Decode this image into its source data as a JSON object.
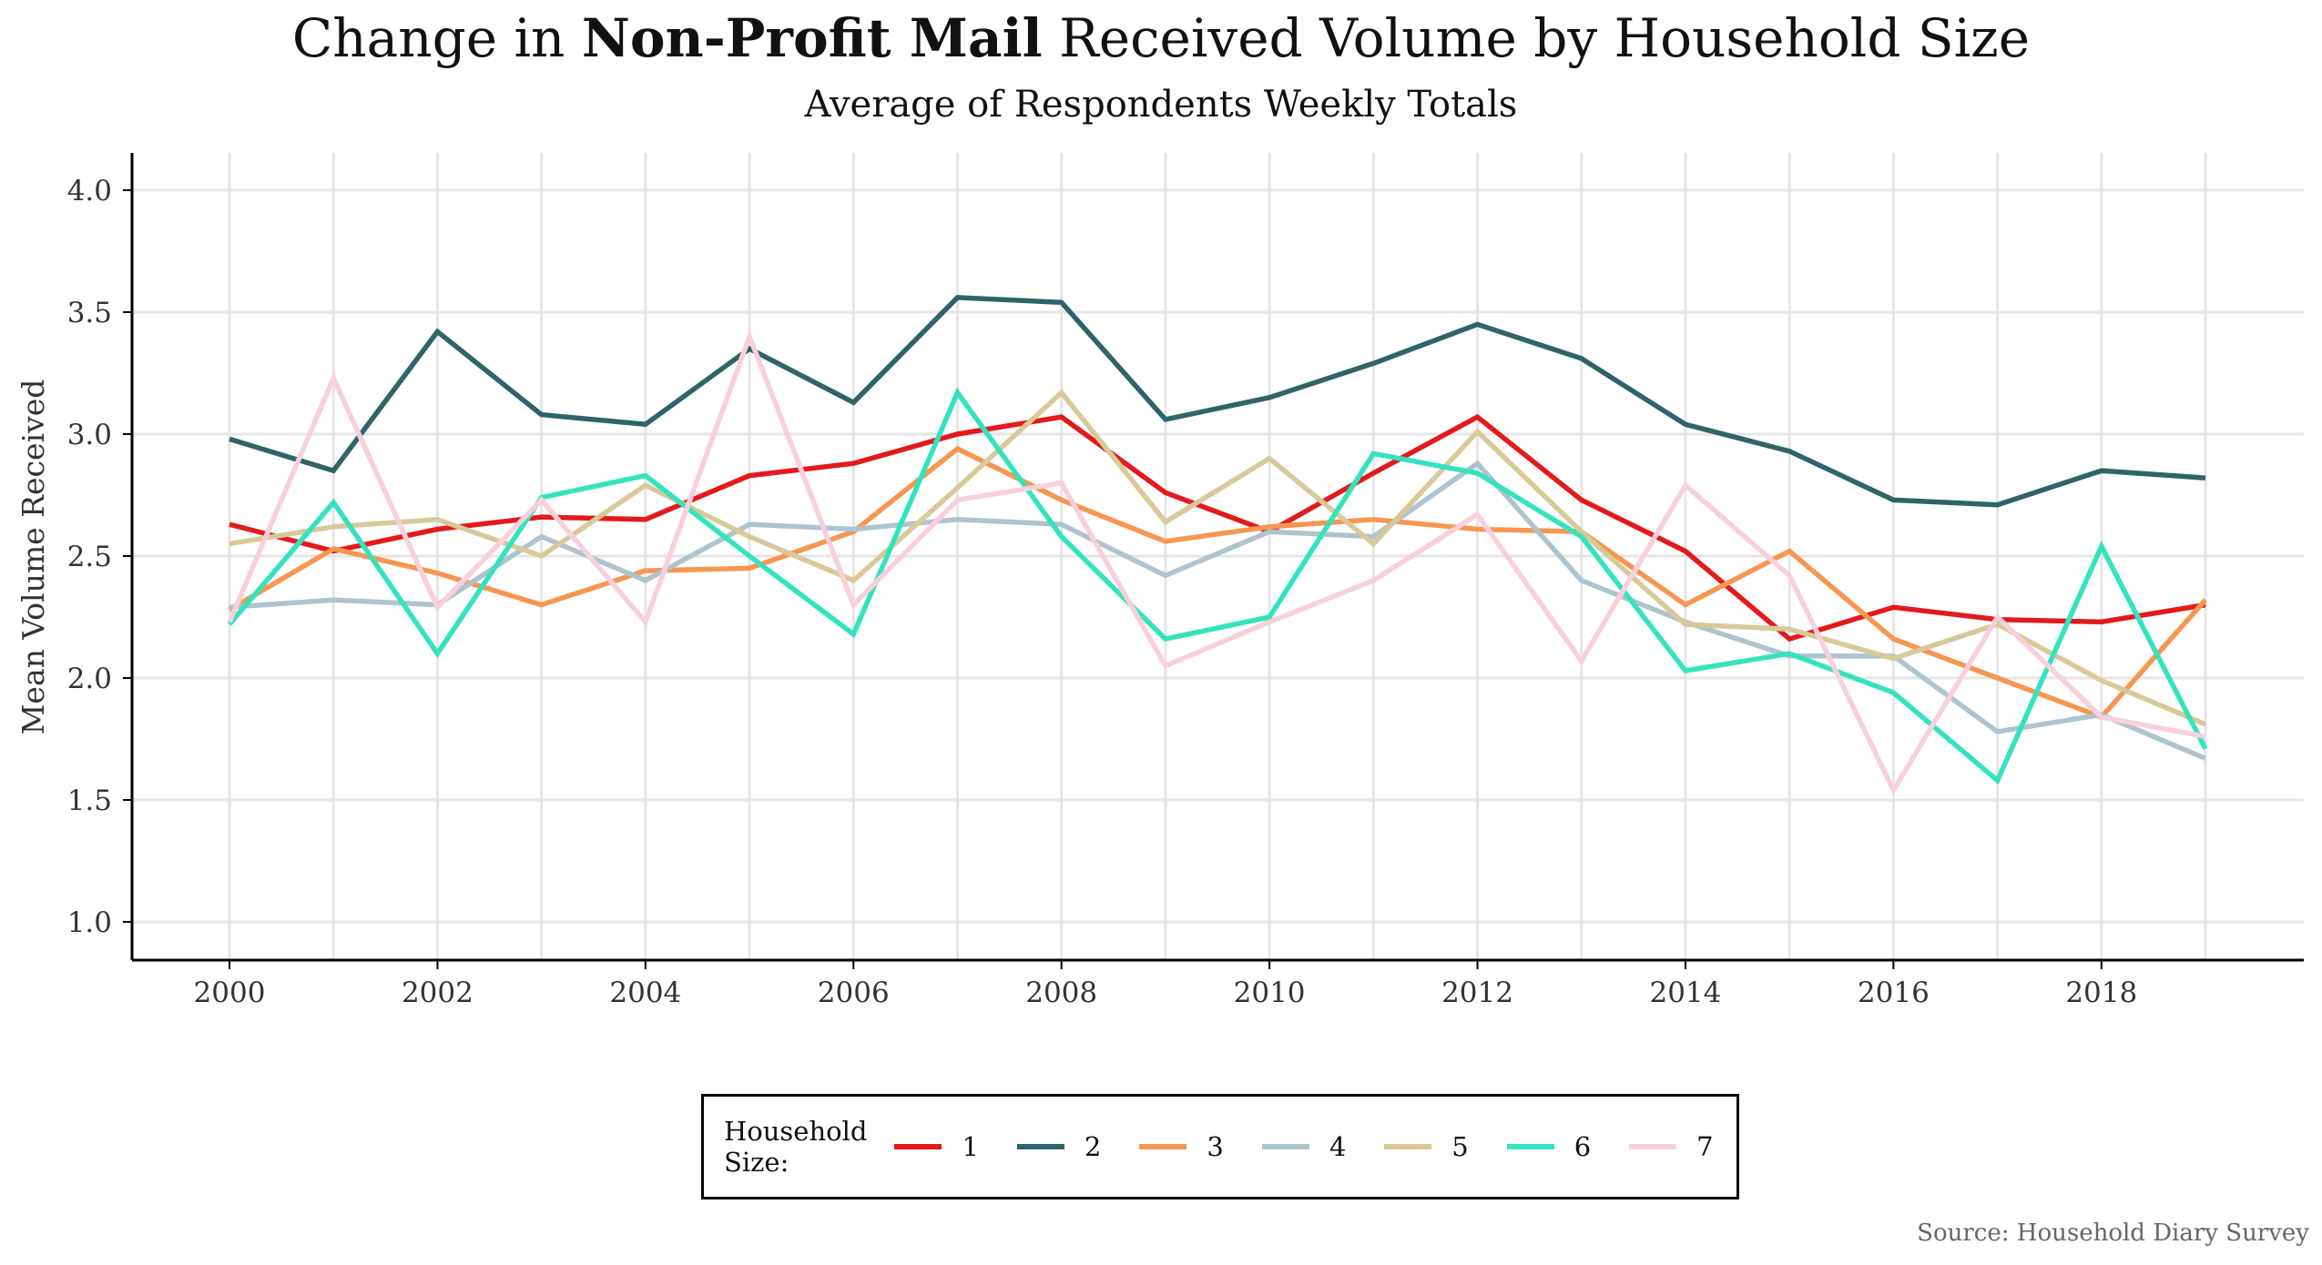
{
  "title_prefix": "Change in ",
  "title_bold": "Non-Profit Mail",
  "title_suffix": " Received Volume by Household Size",
  "subtitle": "Average of Respondents Weekly Totals",
  "caption": "Source: Household Diary Survey",
  "legend_title": "Household Size:",
  "chart_data": {
    "type": "line",
    "title": "Change in Non-Profit Mail Received Volume by Household Size",
    "subtitle": "Average of Respondents Weekly Totals",
    "xlabel": "",
    "ylabel": "Mean Volume Received",
    "xlim": [
      2000,
      2019
    ],
    "ylim": [
      1.0,
      4.0
    ],
    "x_ticks": [
      2000,
      2002,
      2004,
      2006,
      2008,
      2010,
      2012,
      2014,
      2016,
      2018
    ],
    "y_ticks": [
      "1.0",
      "1.5",
      "2.0",
      "2.5",
      "3.0",
      "3.5",
      "4.0"
    ],
    "grid": true,
    "legend_position": "bottom",
    "x": [
      2000,
      2001,
      2002,
      2003,
      2004,
      2005,
      2006,
      2007,
      2008,
      2009,
      2010,
      2011,
      2012,
      2013,
      2014,
      2015,
      2016,
      2017,
      2018,
      2019
    ],
    "series": [
      {
        "name": "1",
        "color": "#e31a1c",
        "values": [
          2.63,
          2.52,
          2.61,
          2.66,
          2.65,
          2.83,
          2.88,
          3.0,
          3.07,
          2.76,
          2.6,
          2.84,
          3.07,
          2.73,
          2.52,
          2.16,
          2.29,
          2.24,
          2.23,
          2.3
        ]
      },
      {
        "name": "2",
        "color": "#2f6468",
        "values": [
          2.98,
          2.85,
          3.42,
          3.08,
          3.04,
          3.35,
          3.13,
          3.56,
          3.54,
          3.06,
          3.15,
          3.29,
          3.45,
          3.31,
          3.04,
          2.93,
          2.73,
          2.71,
          2.85,
          2.82
        ]
      },
      {
        "name": "3",
        "color": "#f79650",
        "values": [
          2.28,
          2.53,
          2.43,
          2.3,
          2.44,
          2.45,
          2.6,
          2.94,
          2.73,
          2.56,
          2.62,
          2.65,
          2.61,
          2.6,
          2.3,
          2.52,
          2.16,
          2.0,
          1.84,
          2.32
        ]
      },
      {
        "name": "4",
        "color": "#aec3cf",
        "values": [
          2.29,
          2.32,
          2.3,
          2.58,
          2.4,
          2.63,
          2.61,
          2.65,
          2.63,
          2.42,
          2.6,
          2.58,
          2.88,
          2.4,
          2.23,
          2.09,
          2.09,
          1.78,
          1.85,
          1.67
        ]
      },
      {
        "name": "5",
        "color": "#d7c999",
        "values": [
          2.55,
          2.62,
          2.65,
          2.5,
          2.79,
          2.58,
          2.4,
          2.78,
          3.17,
          2.64,
          2.9,
          2.55,
          3.01,
          2.6,
          2.22,
          2.2,
          2.08,
          2.22,
          1.99,
          1.81
        ]
      },
      {
        "name": "6",
        "color": "#34e3bd",
        "values": [
          2.22,
          2.72,
          2.1,
          2.74,
          2.83,
          2.5,
          2.18,
          3.17,
          2.58,
          2.16,
          2.25,
          2.92,
          2.84,
          2.58,
          2.03,
          2.1,
          1.94,
          1.58,
          2.54,
          1.71
        ]
      },
      {
        "name": "7",
        "color": "#f9cfdc",
        "values": [
          2.23,
          3.23,
          2.29,
          2.73,
          2.23,
          3.4,
          2.3,
          2.73,
          2.8,
          2.05,
          2.23,
          2.4,
          2.67,
          2.07,
          2.79,
          2.42,
          1.54,
          2.25,
          1.84,
          1.76
        ]
      }
    ]
  }
}
